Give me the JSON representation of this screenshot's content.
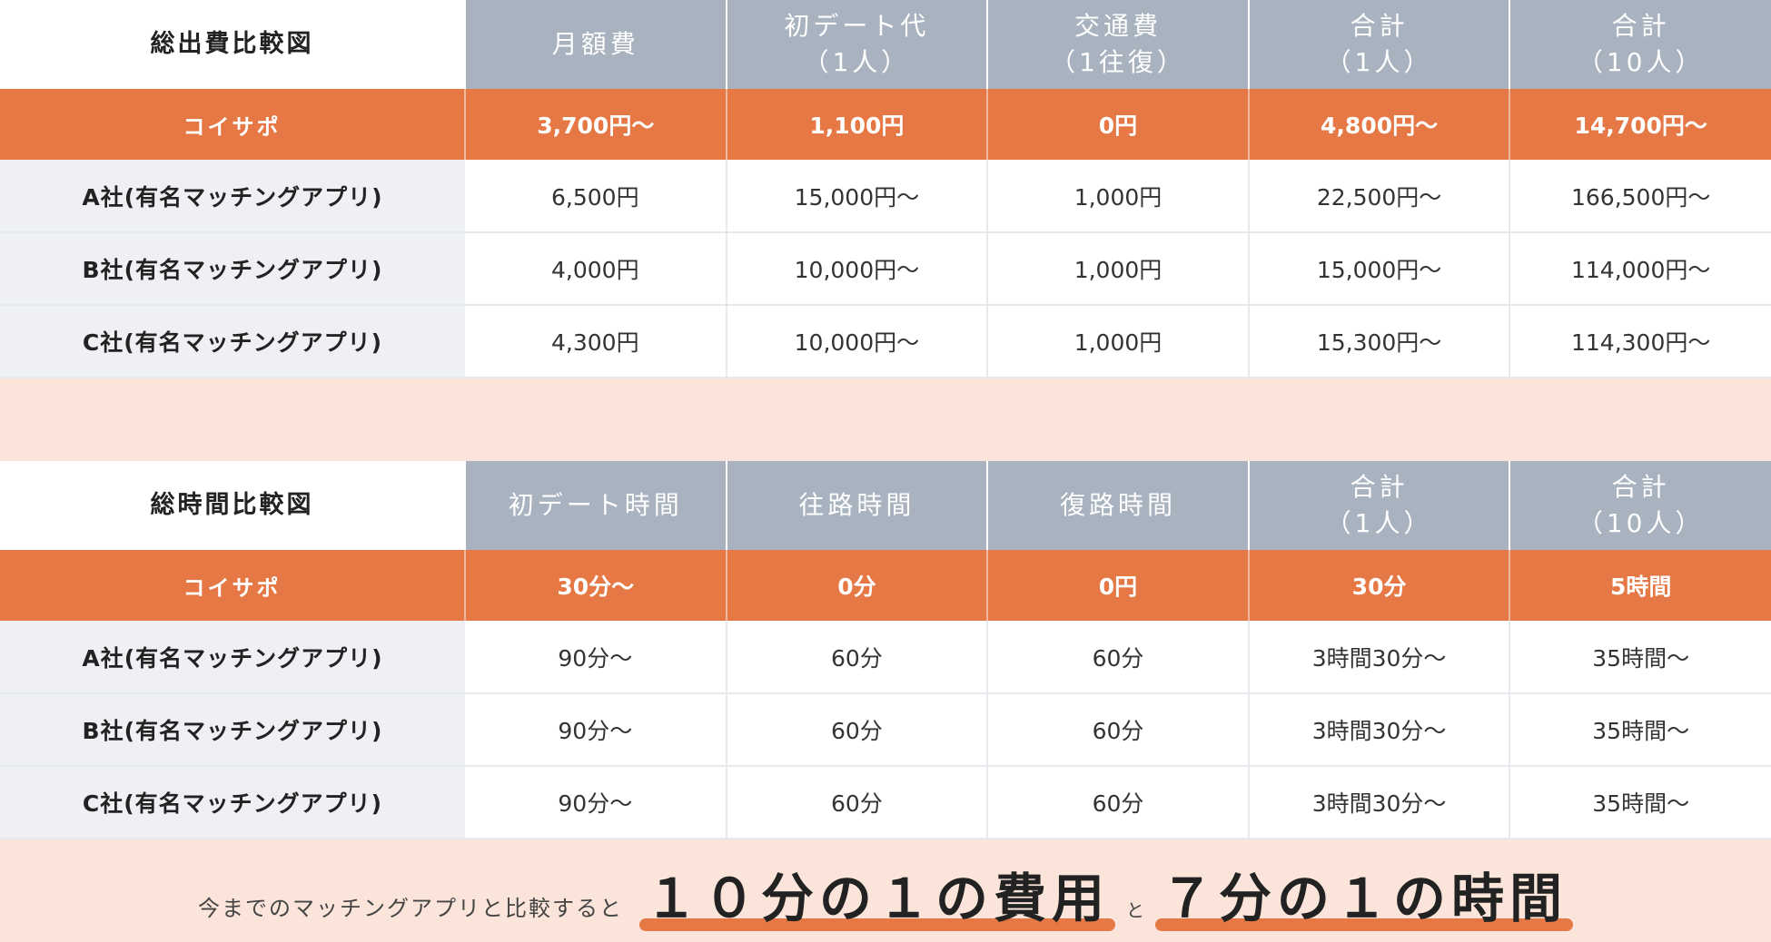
{
  "cost_table": {
    "title": "総出費比較図",
    "columns": [
      {
        "line1": "月額費",
        "line2": ""
      },
      {
        "line1": "初デート代",
        "line2": "（1人）"
      },
      {
        "line1": "交通費",
        "line2": "（1往復）"
      },
      {
        "line1": "合計",
        "line2": "（1人）"
      },
      {
        "line1": "合計",
        "line2": "（10人）"
      }
    ],
    "highlight": {
      "label": "コイサポ",
      "values": [
        "3,700円〜",
        "1,100円",
        "0円",
        "4,800円〜",
        "14,700円〜"
      ]
    },
    "rows": [
      {
        "label": "A社(有名マッチングアプリ)",
        "values": [
          "6,500円",
          "15,000円〜",
          "1,000円",
          "22,500円〜",
          "166,500円〜"
        ]
      },
      {
        "label": "B社(有名マッチングアプリ)",
        "values": [
          "4,000円",
          "10,000円〜",
          "1,000円",
          "15,000円〜",
          "114,000円〜"
        ]
      },
      {
        "label": "C社(有名マッチングアプリ)",
        "values": [
          "4,300円",
          "10,000円〜",
          "1,000円",
          "15,300円〜",
          "114,300円〜"
        ]
      }
    ]
  },
  "time_table": {
    "title": "総時間比較図",
    "columns": [
      {
        "line1": "初デート時間",
        "line2": ""
      },
      {
        "line1": "往路時間",
        "line2": ""
      },
      {
        "line1": "復路時間",
        "line2": ""
      },
      {
        "line1": "合計",
        "line2": "（1人）"
      },
      {
        "line1": "合計",
        "line2": "（10人）"
      }
    ],
    "highlight": {
      "label": "コイサポ",
      "values": [
        "30分〜",
        "0分",
        "0円",
        "30分",
        "5時間"
      ]
    },
    "rows": [
      {
        "label": "A社(有名マッチングアプリ)",
        "values": [
          "90分〜",
          "60分",
          "60分",
          "3時間30分〜",
          "35時間〜"
        ]
      },
      {
        "label": "B社(有名マッチングアプリ)",
        "values": [
          "90分〜",
          "60分",
          "60分",
          "3時間30分〜",
          "35時間〜"
        ]
      },
      {
        "label": "C社(有名マッチングアプリ)",
        "values": [
          "90分〜",
          "60分",
          "60分",
          "3時間30分〜",
          "35時間〜"
        ]
      }
    ]
  },
  "banner": {
    "lead": "今までのマッチングアプリと比較すると",
    "emphasis1": "１０分の１の費用",
    "join": "と",
    "emphasis2": "７分の１の時間"
  },
  "colors": {
    "accent": "#e57845",
    "header_gray": "#a9b2bf",
    "label_bg": "#eef0f4",
    "band_bg": "#fbe4d9"
  }
}
